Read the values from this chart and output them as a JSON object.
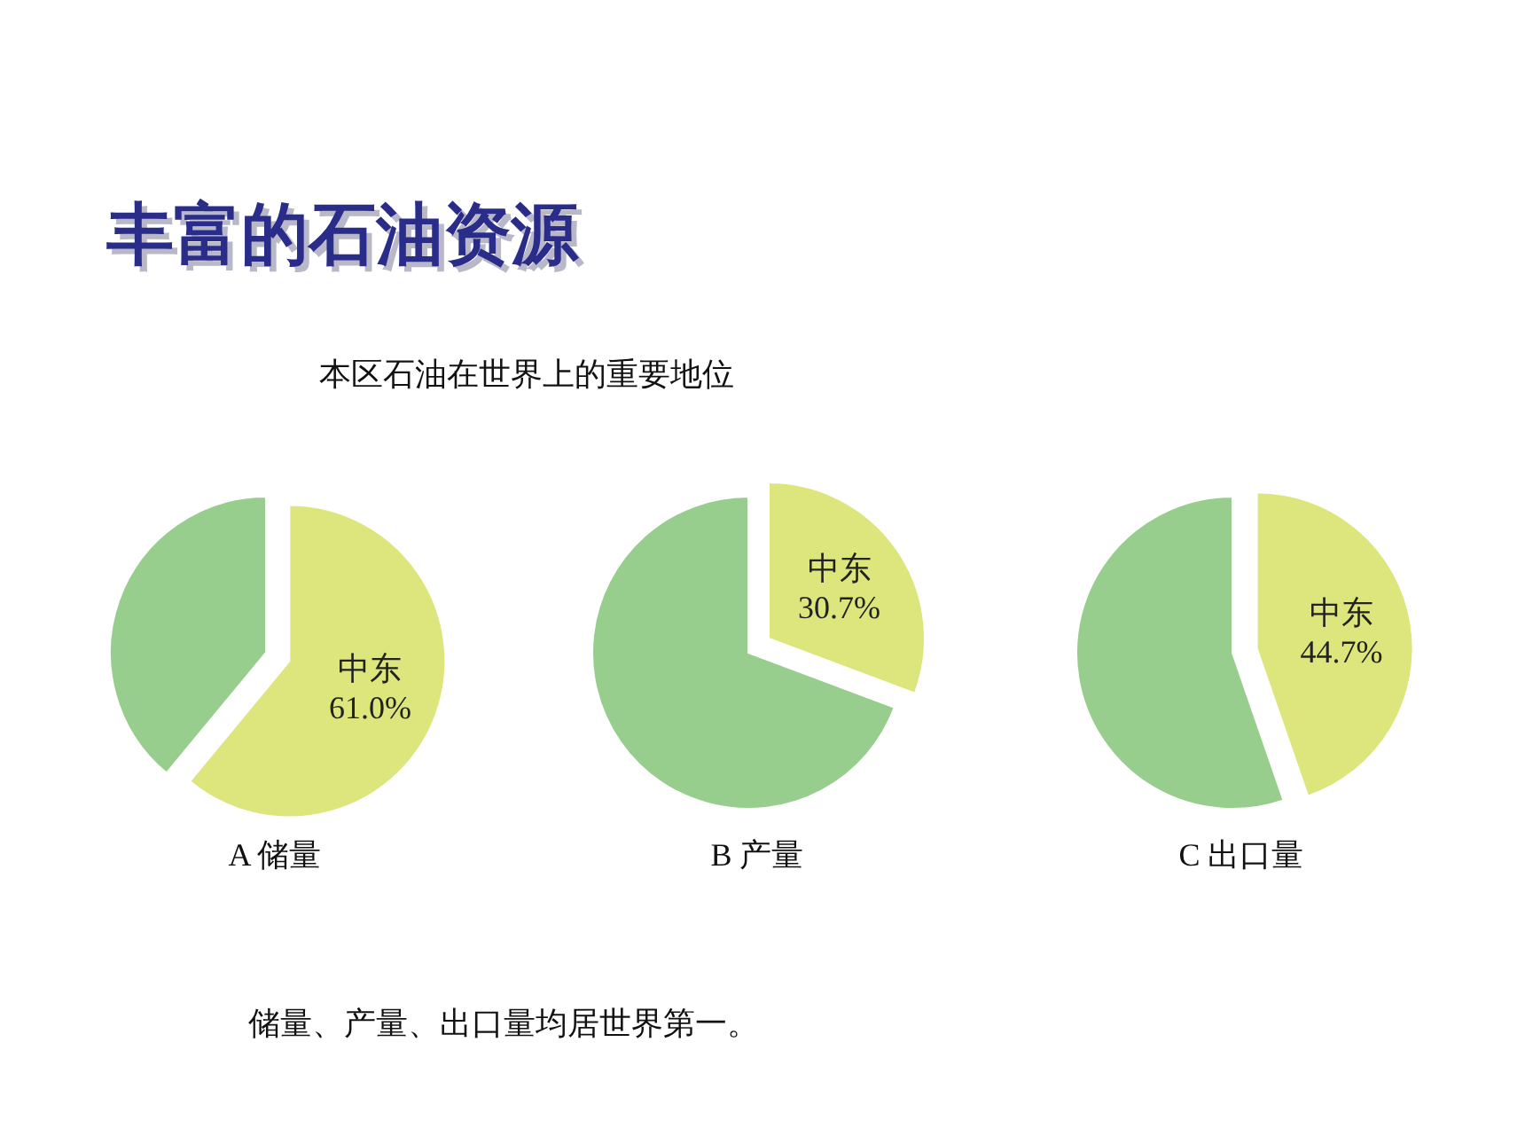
{
  "chart_data": [
    {
      "type": "pie",
      "title": "丰富的石油资源",
      "subtitle": "本区石油在世界上的重要地位",
      "annotations": [
        "储量、产量、出口量均居世界第一。"
      ],
      "xlabel": "A  储量",
      "categories": [
        "中东",
        null
      ],
      "values": [
        61.0,
        39.0
      ],
      "colors": [
        "#dde67c",
        "#97ce8d"
      ],
      "value_labels": [
        "61.0%",
        null
      ]
    },
    {
      "type": "pie",
      "xlabel": "B  产量",
      "categories": [
        "中东",
        null
      ],
      "values": [
        30.7,
        69.3
      ],
      "colors": [
        "#dde67c",
        "#97ce8d"
      ],
      "value_labels": [
        "30.7%",
        null
      ]
    },
    {
      "type": "pie",
      "xlabel": "C  出口量",
      "categories": [
        "中东",
        null
      ],
      "values": [
        44.7,
        55.3
      ],
      "colors": [
        "#dde67c",
        "#97ce8d"
      ],
      "value_labels": [
        "44.7%",
        null
      ]
    }
  ]
}
